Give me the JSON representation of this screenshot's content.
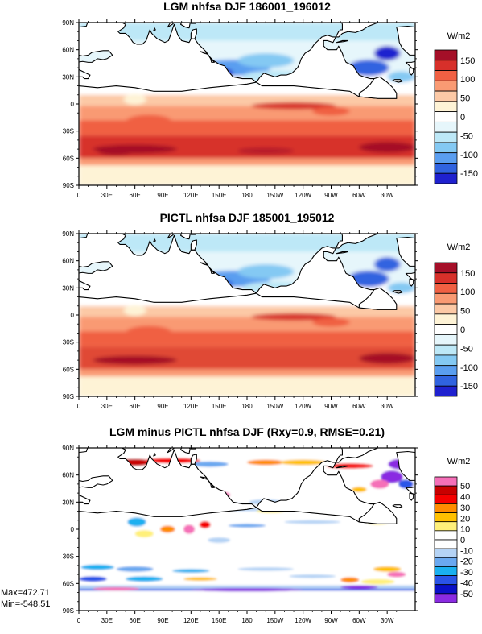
{
  "chart_data": [
    {
      "type": "heatmap",
      "title": "LGM nhfsa DJF 186001_196012",
      "units": "W/m2",
      "colorbar": {
        "labels": [
          "150",
          "100",
          "50",
          "0",
          "-50",
          "-100",
          "-150"
        ],
        "colors": [
          "#a50f28",
          "#d7302a",
          "#f06043",
          "#f99a73",
          "#fcc9a6",
          "#fef3d6",
          "#ffffff",
          "#e6f6fb",
          "#bde8f7",
          "#84c9f3",
          "#5a9ef0",
          "#3063e0",
          "#1f21cf"
        ]
      }
    },
    {
      "type": "heatmap",
      "title": "PICTL nhfsa DJF 185001_195012",
      "units": "W/m2",
      "colorbar": {
        "labels": [
          "150",
          "100",
          "50",
          "0",
          "-50",
          "-100",
          "-150"
        ],
        "colors": [
          "#a50f28",
          "#d7302a",
          "#f06043",
          "#f99a73",
          "#fcc9a6",
          "#fef3d6",
          "#ffffff",
          "#e6f6fb",
          "#bde8f7",
          "#84c9f3",
          "#5a9ef0",
          "#3063e0",
          "#1f21cf"
        ]
      }
    },
    {
      "type": "heatmap",
      "title": "LGM minus PICTL nhfsa DJF (Rxy=0.9, RMSE=0.21)",
      "units": "W/m2",
      "colorbar": {
        "labels": [
          "50",
          "40",
          "30",
          "20",
          "10",
          "0",
          "-10",
          "-20",
          "-30",
          "-40",
          "-50"
        ],
        "colors": [
          "#f56fb8",
          "#c80000",
          "#f50000",
          "#ff8c00",
          "#ffc000",
          "#fff07a",
          "#ffffff",
          "#ffffff",
          "#b5d3f5",
          "#6aa8f0",
          "#1ab0f0",
          "#2a54e8",
          "#0a10c8",
          "#8a2be2"
        ]
      },
      "max_label": "Max=472.71",
      "min_label": "Min=-548.51"
    }
  ],
  "axes": {
    "lat_labels": [
      "90N",
      "60N",
      "30N",
      "0",
      "30S",
      "60S",
      "90S"
    ],
    "lon_labels": [
      "0",
      "30E",
      "60E",
      "90E",
      "120E",
      "150E",
      "180",
      "150W",
      "120W",
      "90W",
      "60W",
      "30W"
    ]
  },
  "colors": {
    "land": "#ffffff",
    "coast": "#000000"
  }
}
